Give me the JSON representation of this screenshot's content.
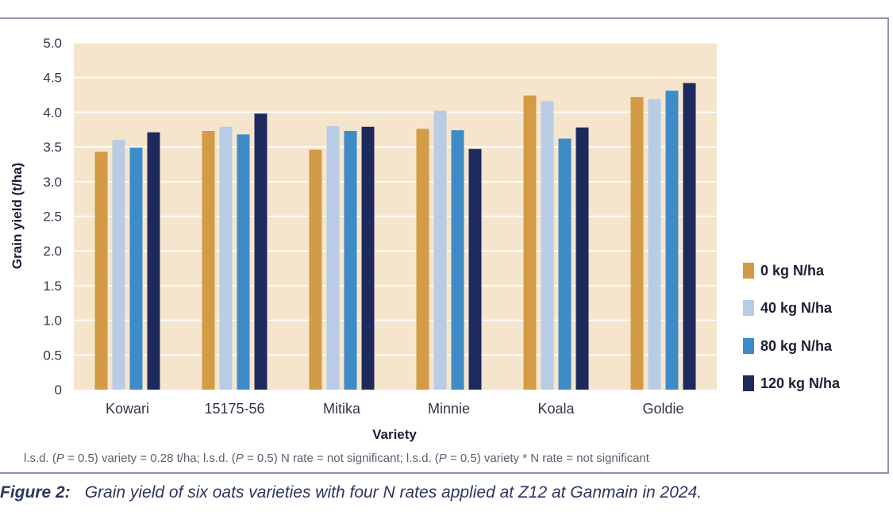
{
  "chart_data": {
    "type": "bar",
    "ylabel": "Grain yield (t/ha)",
    "xlabel": "Variety",
    "ylim": [
      0,
      5
    ],
    "yticks": [
      "0",
      "0.5",
      "1.0",
      "1.5",
      "2.0",
      "2.5",
      "3.0",
      "3.5",
      "4.0",
      "4.5",
      "5.0"
    ],
    "categories": [
      "Kowari",
      "15175-56",
      "Mitika",
      "Minnie",
      "Koala",
      "Goldie"
    ],
    "series": [
      {
        "name": "0 kg N/ha",
        "color": "#d39b45",
        "values": [
          3.43,
          3.73,
          3.46,
          3.76,
          4.24,
          4.22
        ]
      },
      {
        "name": "40 kg N/ha",
        "color": "#b9cce6",
        "values": [
          3.6,
          3.79,
          3.8,
          4.02,
          4.16,
          4.19
        ]
      },
      {
        "name": "80 kg N/ha",
        "color": "#3d8cc7",
        "values": [
          3.49,
          3.68,
          3.73,
          3.74,
          3.62,
          4.31
        ]
      },
      {
        "name": "120 kg N/ha",
        "color": "#1d2a5e",
        "values": [
          3.71,
          3.98,
          3.79,
          3.47,
          3.78,
          4.42
        ]
      }
    ],
    "grid": true,
    "background": "#f5e5cc",
    "legend_position": "right"
  },
  "footnote": {
    "p1": "l.s.d. (",
    "p": "P",
    "p2": " = 0.5) variety = 0.28 t/ha;    l.s.d. (",
    "p3": " = 0.5) N rate = not significant;    l.s.d. (",
    "p4": " = 0.5)  variety * N rate = not significant"
  },
  "caption": {
    "label": "Figure 2:",
    "text": "Grain yield of six oats varieties with four N rates applied at Z12 at Ganmain in 2024."
  }
}
